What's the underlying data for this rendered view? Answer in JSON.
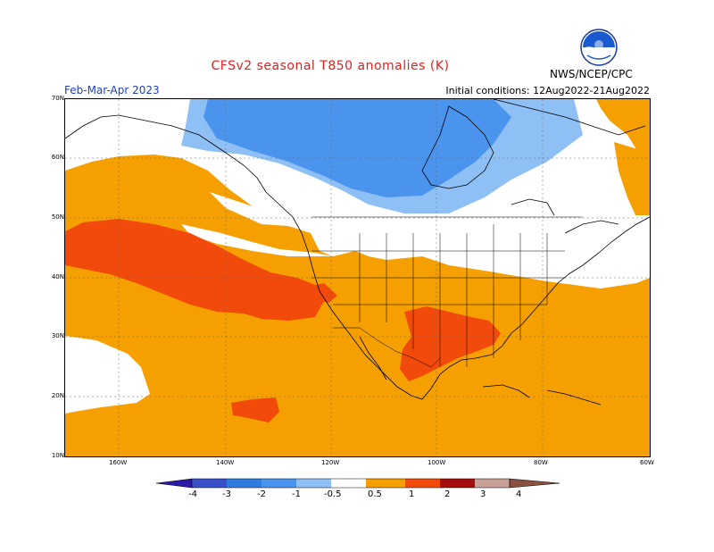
{
  "title": "CFSv2 seasonal T850 anomalies (K)",
  "season": "Feb-Mar-Apr 2023",
  "initial_conditions": "Initial conditions: 12Aug2022-21Aug2022",
  "agency": "NWS/NCEP/CPC",
  "logo_text": "NOAA",
  "latitude_labels": [
    "70N",
    "60N",
    "50N",
    "40N",
    "30N",
    "20N",
    "10N"
  ],
  "longitude_labels": [
    "160W",
    "140W",
    "120W",
    "100W",
    "80W",
    "60W"
  ],
  "colorbar": {
    "tick_labels": [
      "-4",
      "-3",
      "-2",
      "-1",
      "-0.5",
      "0.5",
      "1",
      "2",
      "3",
      "4"
    ],
    "colors": [
      "#2a1aa8",
      "#3a50c8",
      "#2f7be0",
      "#4a94ee",
      "#8ec0f6",
      "#ffffff",
      "#f5a000",
      "#f24a0a",
      "#a40d0d",
      "#c8a098",
      "#8a5040"
    ]
  },
  "anomaly_colors": {
    "light_blue": "#8ec0f6",
    "blue": "#4a94ee",
    "orange": "#f5a000",
    "red_orange": "#f24a0a"
  }
}
